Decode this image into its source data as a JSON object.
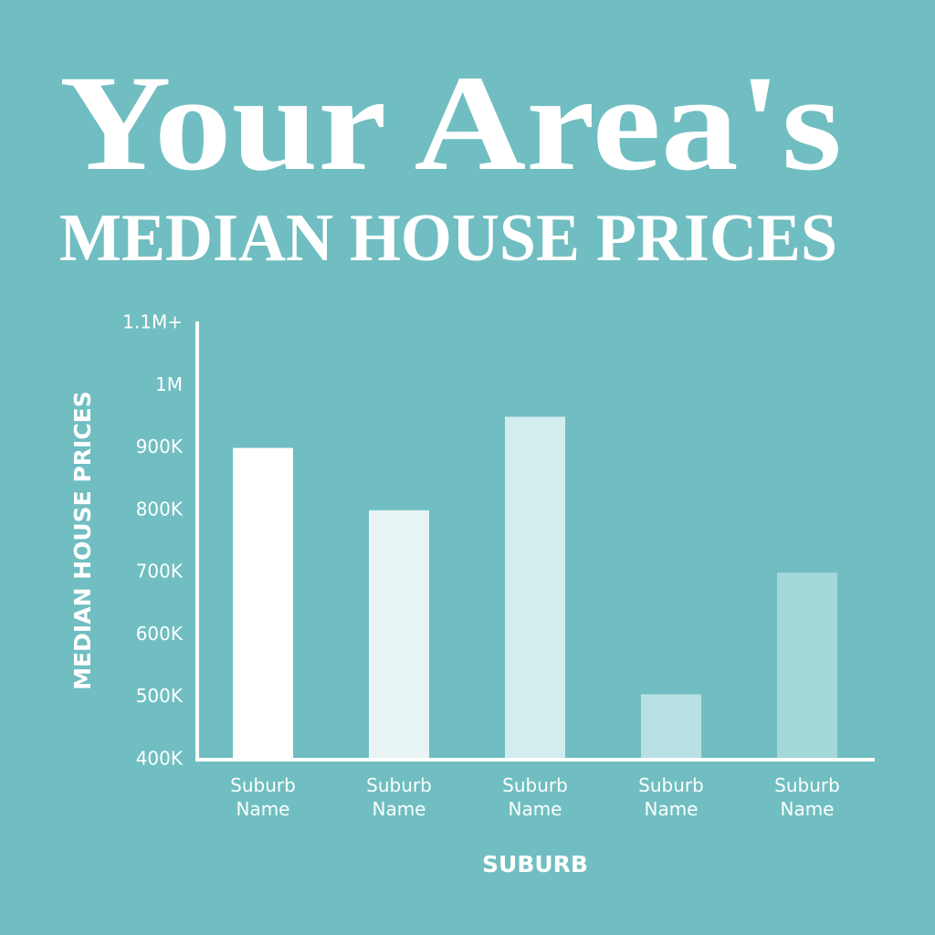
{
  "chart_data": {
    "type": "bar",
    "title": "Your Area's",
    "subtitle": "MEDIAN HOUSE PRICES",
    "y_label": "MEDIAN HOUSE PRICES",
    "x_label": "SUBURB",
    "categories": [
      "Suburb Name",
      "Suburb Name",
      "Suburb Name",
      "Suburb Name",
      "Suburb Name"
    ],
    "values": [
      900000,
      800000,
      950000,
      505000,
      700000
    ],
    "colors": [
      "#ffffff",
      "#e8f4f4",
      "#d3ecee",
      "#b9e0e2",
      "#a3d7d9"
    ],
    "ylim": [
      400000,
      1100000
    ],
    "yticks": [
      {
        "value": 400000,
        "label": "400K"
      },
      {
        "value": 500000,
        "label": "500K"
      },
      {
        "value": 600000,
        "label": "600K"
      },
      {
        "value": 700000,
        "label": "700K"
      },
      {
        "value": 800000,
        "label": "800K"
      },
      {
        "value": 900000,
        "label": "900K"
      },
      {
        "value": 1000000,
        "label": "1M"
      },
      {
        "value": 1100000,
        "label": "1.1M+"
      }
    ],
    "grid": false
  }
}
